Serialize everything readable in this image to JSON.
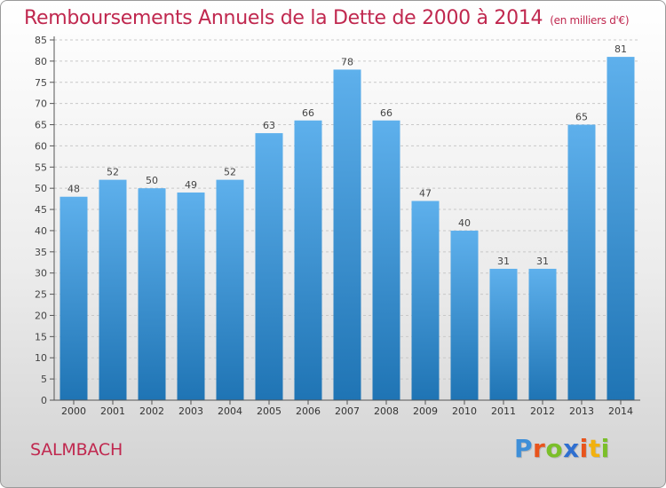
{
  "title": "Remboursements Annuels de la Dette de 2000 à 2014",
  "unit_note": "(en milliers d'€)",
  "commune": "SALMBACH",
  "logo": {
    "letters": [
      "P",
      "r",
      "o",
      "x",
      "i",
      "t",
      "i"
    ],
    "colors": [
      "#3e8fd8",
      "#e8541c",
      "#7bbf2a",
      "#2f6fd0",
      "#e8541c",
      "#f2b10e",
      "#7bbf2a"
    ]
  },
  "colors": {
    "title": "#c0284f",
    "bar_light": "#5eb0ec",
    "bar_dark": "#1f74b4"
  },
  "chart_data": {
    "type": "bar",
    "categories": [
      "2000",
      "2001",
      "2002",
      "2003",
      "2004",
      "2005",
      "2006",
      "2007",
      "2008",
      "2009",
      "2010",
      "2011",
      "2012",
      "2013",
      "2014"
    ],
    "values": [
      48,
      52,
      50,
      49,
      52,
      63,
      66,
      78,
      66,
      47,
      40,
      31,
      31,
      65,
      81
    ],
    "ylim": [
      0,
      85
    ],
    "yticks": [
      0,
      5,
      10,
      15,
      20,
      25,
      30,
      35,
      40,
      45,
      50,
      55,
      60,
      65,
      70,
      75,
      80,
      85
    ],
    "grid": true,
    "data_labels": true
  }
}
